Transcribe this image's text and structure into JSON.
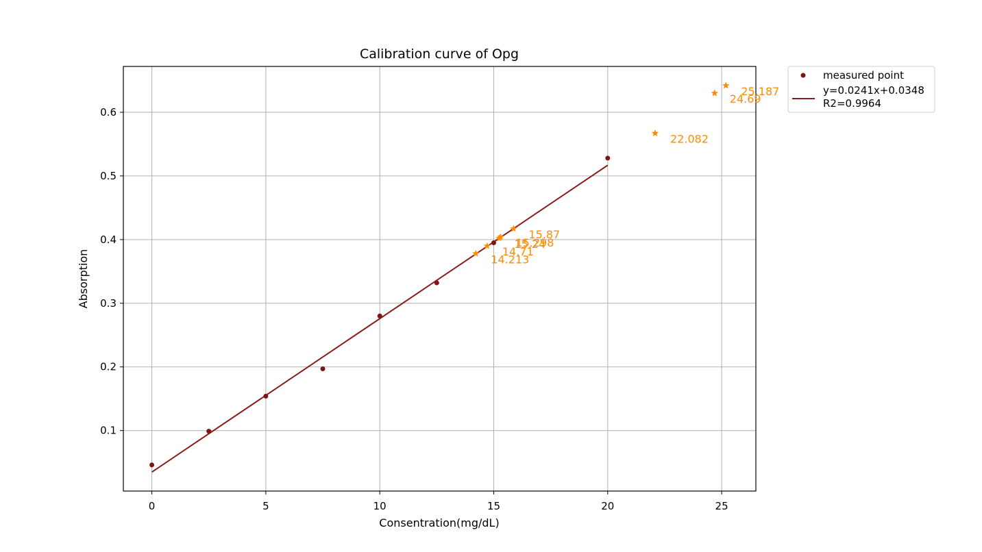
{
  "chart_data": {
    "type": "scatter",
    "title": "Calibration curve of Opg",
    "xlabel": "Consentration(mg/dL)",
    "ylabel": "Absorption",
    "xlim": [
      -1.25,
      26.5
    ],
    "ylim": [
      0.005,
      0.672
    ],
    "xticks": [
      "0",
      "5",
      "10",
      "15",
      "20",
      "25"
    ],
    "yticks": [
      "0.1",
      "0.2",
      "0.3",
      "0.4",
      "0.5",
      "0.6"
    ],
    "grid": true,
    "legend_position": "outside top-right",
    "colors": {
      "measured": "#7f1416",
      "fit": "#8b1a1a",
      "samples": "#ff8c00"
    },
    "measured_points": {
      "name": "measured point",
      "x": [
        0,
        2.5,
        5,
        7.5,
        10,
        12.5,
        15,
        20
      ],
      "y": [
        0.046,
        0.099,
        0.154,
        0.197,
        0.28,
        0.332,
        0.395,
        0.528
      ]
    },
    "fit_line": {
      "name": "y=0.0241x+0.0348\nR2=0.9964",
      "name_line1": "y=0.0241x+0.0348",
      "name_line2": "R2=0.9964",
      "slope": 0.0241,
      "intercept": 0.0348,
      "x_range": [
        0,
        20
      ]
    },
    "sample_points": {
      "x": [
        14.213,
        14.71,
        15.24,
        15.298,
        15.87,
        22.082,
        24.69,
        25.187
      ],
      "y": [
        0.378,
        0.39,
        0.402,
        0.404,
        0.417,
        0.567,
        0.63,
        0.642
      ],
      "labels": [
        "14.213",
        "14.71",
        "15.24",
        "15.298",
        "15.87",
        "22.082",
        "24.69",
        "25.187"
      ]
    }
  }
}
